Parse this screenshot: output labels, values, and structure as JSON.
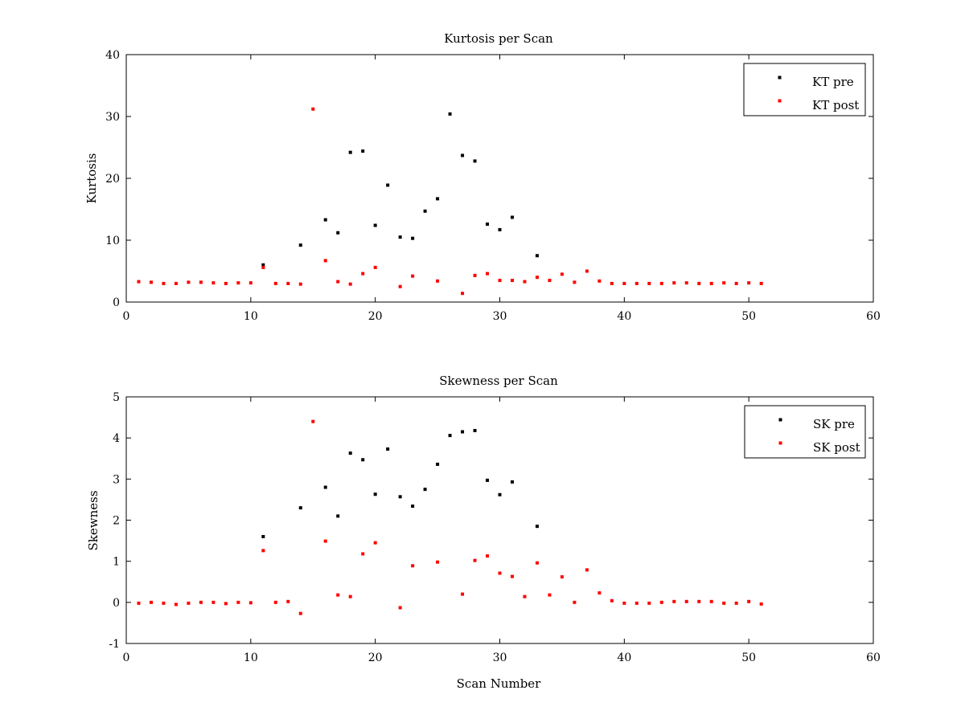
{
  "chart_data": [
    {
      "type": "scatter",
      "title": "Kurtosis per Scan",
      "xlabel": "",
      "ylabel": "Kurtosis",
      "xlim": [
        0,
        60
      ],
      "ylim": [
        0,
        40
      ],
      "xticks": [
        0,
        10,
        20,
        30,
        40,
        50,
        60
      ],
      "yticks": [
        0,
        10,
        20,
        30,
        40
      ],
      "grid": false,
      "legend": "top-right",
      "series": [
        {
          "name": "KT pre",
          "color": "#000000",
          "x": [
            11,
            14,
            16,
            17,
            18,
            19,
            20,
            21,
            22,
            23,
            24,
            25,
            26,
            27,
            28,
            29,
            30,
            31,
            33
          ],
          "y": [
            6.0,
            9.2,
            13.3,
            11.2,
            24.2,
            24.4,
            12.4,
            18.9,
            10.5,
            10.3,
            14.7,
            16.7,
            30.4,
            23.7,
            22.8,
            12.6,
            11.7,
            13.7,
            7.5
          ]
        },
        {
          "name": "KT post",
          "color": "#ff0000",
          "x": [
            1,
            2,
            3,
            4,
            5,
            6,
            7,
            8,
            9,
            10,
            11,
            12,
            13,
            14,
            15,
            16,
            17,
            18,
            19,
            20,
            22,
            23,
            25,
            27,
            28,
            29,
            30,
            31,
            32,
            33,
            34,
            35,
            36,
            37,
            38,
            39,
            40,
            41,
            42,
            43,
            44,
            45,
            46,
            47,
            48,
            49,
            50,
            51
          ],
          "y": [
            3.3,
            3.2,
            3.0,
            3.0,
            3.2,
            3.2,
            3.1,
            3.0,
            3.1,
            3.1,
            5.6,
            3.0,
            3.0,
            2.9,
            31.2,
            6.7,
            3.3,
            2.9,
            4.6,
            5.6,
            2.5,
            4.2,
            3.4,
            1.4,
            4.3,
            4.6,
            3.5,
            3.5,
            3.3,
            4.0,
            3.5,
            4.5,
            3.2,
            5.0,
            3.4,
            3.0,
            3.0,
            3.0,
            3.0,
            3.0,
            3.1,
            3.1,
            3.0,
            3.0,
            3.1,
            3.0,
            3.1,
            3.0
          ]
        }
      ]
    },
    {
      "type": "scatter",
      "title": "Skewness per Scan",
      "xlabel": "Scan Number",
      "ylabel": "Skewness",
      "xlim": [
        0,
        60
      ],
      "ylim": [
        -1,
        5
      ],
      "xticks": [
        0,
        10,
        20,
        30,
        40,
        50,
        60
      ],
      "yticks": [
        -1,
        0,
        1,
        2,
        3,
        4,
        5
      ],
      "grid": false,
      "legend": "top-right",
      "series": [
        {
          "name": "SK pre",
          "color": "#000000",
          "x": [
            11,
            14,
            16,
            17,
            18,
            19,
            20,
            21,
            22,
            23,
            24,
            25,
            26,
            27,
            28,
            29,
            30,
            31,
            33
          ],
          "y": [
            1.6,
            2.3,
            2.8,
            2.1,
            3.63,
            3.47,
            2.63,
            3.73,
            2.57,
            2.34,
            2.75,
            3.36,
            4.06,
            4.15,
            4.18,
            2.97,
            2.62,
            2.93,
            1.85
          ]
        },
        {
          "name": "SK post",
          "color": "#ff0000",
          "x": [
            1,
            2,
            3,
            4,
            5,
            6,
            7,
            8,
            9,
            10,
            11,
            12,
            13,
            14,
            15,
            16,
            17,
            18,
            19,
            20,
            22,
            23,
            25,
            27,
            28,
            29,
            30,
            31,
            32,
            33,
            34,
            35,
            36,
            37,
            38,
            39,
            40,
            41,
            42,
            43,
            44,
            45,
            46,
            47,
            48,
            49,
            50,
            51
          ],
          "y": [
            -0.02,
            0.0,
            -0.02,
            -0.05,
            -0.02,
            0.0,
            0.0,
            -0.03,
            0.0,
            -0.01,
            1.26,
            0.0,
            0.02,
            -0.27,
            4.4,
            1.49,
            0.18,
            0.14,
            1.18,
            1.45,
            -0.13,
            0.89,
            0.98,
            0.2,
            1.02,
            1.13,
            0.71,
            0.63,
            0.14,
            0.96,
            0.18,
            0.62,
            0.0,
            0.79,
            0.23,
            0.04,
            -0.02,
            -0.02,
            -0.02,
            0.0,
            0.02,
            0.02,
            0.02,
            0.02,
            -0.02,
            -0.02,
            0.02,
            -0.04
          ]
        }
      ]
    }
  ]
}
